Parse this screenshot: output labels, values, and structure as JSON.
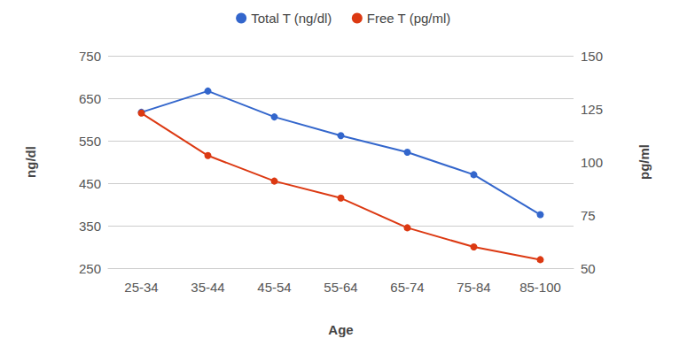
{
  "chart_data": {
    "type": "line",
    "categories": [
      "25-34",
      "35-44",
      "45-54",
      "55-64",
      "65-74",
      "75-84",
      "85-100"
    ],
    "series": [
      {
        "name": "Total T (ng/dl)",
        "color": "#3366cc",
        "values": [
          617,
          667,
          606,
          562,
          523,
          470,
          376
        ]
      },
      {
        "name": "Free T (pg/ml)",
        "color": "#dc3912",
        "axis": "y2",
        "values": [
          123,
          103,
          91,
          83,
          69,
          60,
          54
        ]
      }
    ],
    "xlabel": "Age",
    "ylabel": "ng/dl",
    "y2label": "pg/ml",
    "ylim": [
      250,
      750
    ],
    "yticks": [
      250,
      350,
      450,
      550,
      650,
      750
    ],
    "y2lim": [
      50,
      150
    ],
    "y2ticks": [
      50,
      75,
      100,
      125,
      150
    ],
    "grid": true,
    "legend": "top",
    "marker": "circle"
  }
}
